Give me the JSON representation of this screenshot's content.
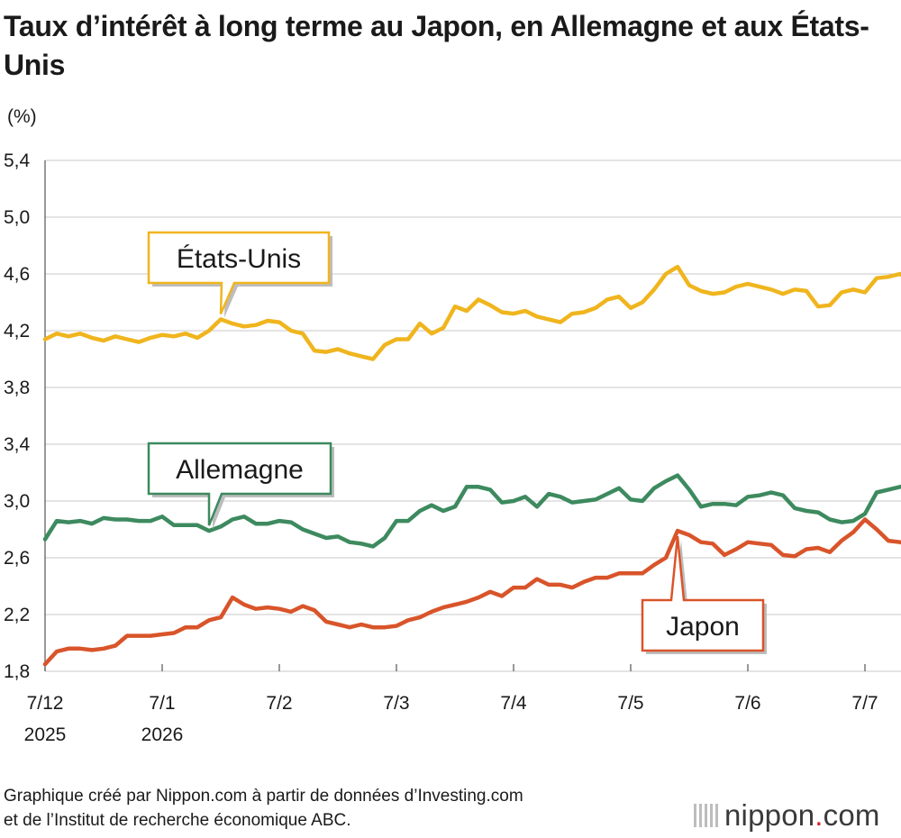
{
  "title": "Taux d’intérêt à long terme au Japon, en Allemagne et aux États-Unis",
  "unit_label": "(%)",
  "source_line1": "Graphique créé par Nippon.com à partir de données d’Investing.com",
  "source_line2": "et de l’Institut de recherche économique ABC.",
  "logo": {
    "prefix": "nippon",
    "dot": ".",
    "suffix": "com",
    "icon": "stripes-icon"
  },
  "chart_data": {
    "type": "line",
    "title": "Taux d’intérêt à long terme au Japon, en Allemagne et aux États-Unis",
    "ylabel": "(%)",
    "ylim": [
      1.8,
      5.4
    ],
    "yticks": [
      "5,4",
      "5,0",
      "4,6",
      "4,2",
      "3,8",
      "3,4",
      "3,0",
      "2,6",
      "2,2",
      "1,8"
    ],
    "yticks_values": [
      5.4,
      5.0,
      4.6,
      4.2,
      3.8,
      3.4,
      3.0,
      2.6,
      2.2,
      1.8
    ],
    "xlim": [
      0,
      7.4
    ],
    "xticks": [
      {
        "value": 0,
        "label": "7/12",
        "sub": "2025"
      },
      {
        "value": 1,
        "label": "7/1",
        "sub": "2026"
      },
      {
        "value": 2,
        "label": "7/2",
        "sub": ""
      },
      {
        "value": 3,
        "label": "7/3",
        "sub": ""
      },
      {
        "value": 4,
        "label": "7/4",
        "sub": ""
      },
      {
        "value": 5,
        "label": "7/5",
        "sub": ""
      },
      {
        "value": 6,
        "label": "7/6",
        "sub": ""
      },
      {
        "value": 7,
        "label": "7/7",
        "sub": ""
      }
    ],
    "grid": true,
    "series": [
      {
        "name": "États-Unis",
        "color": "#f0b51e",
        "x": [
          0,
          0.1,
          0.2,
          0.3,
          0.4,
          0.5,
          0.6,
          0.7,
          0.8,
          0.9,
          1.0,
          1.1,
          1.2,
          1.3,
          1.4,
          1.5,
          1.6,
          1.7,
          1.8,
          1.9,
          2.0,
          2.1,
          2.2,
          2.3,
          2.4,
          2.5,
          2.6,
          2.7,
          2.8,
          2.9,
          3.0,
          3.1,
          3.2,
          3.3,
          3.4,
          3.5,
          3.6,
          3.7,
          3.8,
          3.9,
          4.0,
          4.1,
          4.2,
          4.3,
          4.4,
          4.5,
          4.6,
          4.7,
          4.8,
          4.9,
          5.0,
          5.1,
          5.2,
          5.3,
          5.4,
          5.5,
          5.6,
          5.7,
          5.8,
          5.9,
          6.0,
          6.1,
          6.2,
          6.3,
          6.4,
          6.5,
          6.6,
          6.7,
          6.8,
          6.9,
          7.0,
          7.1,
          7.2,
          7.3,
          7.4
        ],
        "values": [
          4.14,
          4.18,
          4.16,
          4.18,
          4.15,
          4.13,
          4.16,
          4.14,
          4.12,
          4.15,
          4.17,
          4.16,
          4.18,
          4.15,
          4.2,
          4.28,
          4.25,
          4.23,
          4.24,
          4.27,
          4.26,
          4.2,
          4.18,
          4.06,
          4.05,
          4.07,
          4.04,
          4.02,
          4.0,
          4.1,
          4.14,
          4.14,
          4.25,
          4.18,
          4.22,
          4.37,
          4.34,
          4.42,
          4.38,
          4.33,
          4.32,
          4.34,
          4.3,
          4.28,
          4.26,
          4.32,
          4.33,
          4.36,
          4.42,
          4.44,
          4.36,
          4.4,
          4.49,
          4.6,
          4.65,
          4.52,
          4.48,
          4.46,
          4.47,
          4.51,
          4.53,
          4.51,
          4.49,
          4.46,
          4.49,
          4.48,
          4.37,
          4.38,
          4.47,
          4.49,
          4.47,
          4.57,
          4.58,
          4.6,
          4.54
        ]
      },
      {
        "name": "Allemagne",
        "color": "#3d8a5f",
        "x": [
          0,
          0.1,
          0.2,
          0.3,
          0.4,
          0.5,
          0.6,
          0.7,
          0.8,
          0.9,
          1.0,
          1.1,
          1.2,
          1.3,
          1.4,
          1.5,
          1.6,
          1.7,
          1.8,
          1.9,
          2.0,
          2.1,
          2.2,
          2.3,
          2.4,
          2.5,
          2.6,
          2.7,
          2.8,
          2.9,
          3.0,
          3.1,
          3.2,
          3.3,
          3.4,
          3.5,
          3.6,
          3.7,
          3.8,
          3.9,
          4.0,
          4.1,
          4.2,
          4.3,
          4.4,
          4.5,
          4.6,
          4.7,
          4.8,
          4.9,
          5.0,
          5.1,
          5.2,
          5.3,
          5.4,
          5.5,
          5.6,
          5.7,
          5.8,
          5.9,
          6.0,
          6.1,
          6.2,
          6.3,
          6.4,
          6.5,
          6.6,
          6.7,
          6.8,
          6.9,
          7.0,
          7.1,
          7.2,
          7.3,
          7.4
        ],
        "values": [
          2.73,
          2.86,
          2.85,
          2.86,
          2.84,
          2.88,
          2.87,
          2.87,
          2.86,
          2.86,
          2.89,
          2.83,
          2.83,
          2.83,
          2.79,
          2.82,
          2.87,
          2.89,
          2.84,
          2.84,
          2.86,
          2.85,
          2.8,
          2.77,
          2.74,
          2.75,
          2.71,
          2.7,
          2.68,
          2.74,
          2.86,
          2.86,
          2.93,
          2.97,
          2.93,
          2.96,
          3.1,
          3.1,
          3.08,
          2.99,
          3.0,
          3.03,
          2.96,
          3.05,
          3.03,
          2.99,
          3.0,
          3.01,
          3.05,
          3.09,
          3.01,
          3.0,
          3.09,
          3.14,
          3.18,
          3.08,
          2.96,
          2.98,
          2.98,
          2.97,
          3.03,
          3.04,
          3.06,
          3.04,
          2.95,
          2.93,
          2.92,
          2.87,
          2.85,
          2.86,
          2.91,
          3.06,
          3.08,
          3.1,
          3.11
        ]
      },
      {
        "name": "Japon",
        "color": "#d9542a",
        "x": [
          0,
          0.1,
          0.2,
          0.3,
          0.4,
          0.5,
          0.6,
          0.7,
          0.8,
          0.9,
          1.0,
          1.1,
          1.2,
          1.3,
          1.4,
          1.5,
          1.6,
          1.7,
          1.8,
          1.9,
          2.0,
          2.1,
          2.2,
          2.3,
          2.4,
          2.5,
          2.6,
          2.7,
          2.8,
          2.9,
          3.0,
          3.1,
          3.2,
          3.3,
          3.4,
          3.5,
          3.6,
          3.7,
          3.8,
          3.9,
          4.0,
          4.1,
          4.2,
          4.3,
          4.4,
          4.5,
          4.6,
          4.7,
          4.8,
          4.9,
          5.0,
          5.1,
          5.2,
          5.3,
          5.4,
          5.5,
          5.6,
          5.7,
          5.8,
          5.9,
          6.0,
          6.1,
          6.2,
          6.3,
          6.4,
          6.5,
          6.6,
          6.7,
          6.8,
          6.9,
          7.0,
          7.1,
          7.2,
          7.3,
          7.4
        ],
        "values": [
          1.85,
          1.94,
          1.96,
          1.96,
          1.95,
          1.96,
          1.98,
          2.05,
          2.05,
          2.05,
          2.06,
          2.07,
          2.11,
          2.11,
          2.16,
          2.18,
          2.32,
          2.27,
          2.24,
          2.25,
          2.24,
          2.22,
          2.26,
          2.23,
          2.15,
          2.13,
          2.11,
          2.13,
          2.11,
          2.11,
          2.12,
          2.16,
          2.18,
          2.22,
          2.25,
          2.27,
          2.29,
          2.32,
          2.36,
          2.33,
          2.39,
          2.39,
          2.45,
          2.41,
          2.41,
          2.39,
          2.43,
          2.46,
          2.46,
          2.49,
          2.49,
          2.49,
          2.55,
          2.6,
          2.79,
          2.76,
          2.71,
          2.7,
          2.62,
          2.66,
          2.71,
          2.7,
          2.69,
          2.62,
          2.61,
          2.66,
          2.67,
          2.64,
          2.72,
          2.78,
          2.87,
          2.8,
          2.72,
          2.71,
          2.69
        ]
      }
    ],
    "annotations": [
      {
        "text": "États-Unis",
        "series": "États-Unis",
        "at_x": 1.5,
        "at_y": 4.28,
        "placement": "above"
      },
      {
        "text": "Allemagne",
        "series": "Allemagne",
        "at_x": 1.4,
        "at_y": 2.79,
        "placement": "above"
      },
      {
        "text": "Japon",
        "series": "Japon",
        "at_x": 5.4,
        "at_y": 2.79,
        "placement": "below"
      }
    ]
  }
}
